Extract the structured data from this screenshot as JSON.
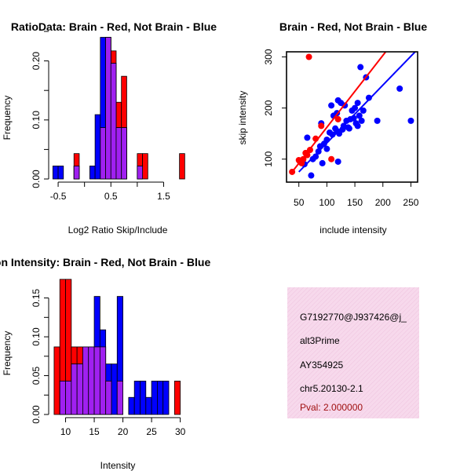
{
  "colors": {
    "red": "#ff0000",
    "blue": "#0000ff",
    "purple": "#a020f0",
    "black": "#000000",
    "panel_bg": "#f7d9ec",
    "pval": "#a01010"
  },
  "chart_data": [
    {
      "type": "bar",
      "title": "RatioData: Brain - Red, Not Brain - Blue",
      "xlabel": "Log2 Ratio Skip/Include",
      "ylabel": "Frequency",
      "xlim": [
        -0.62,
        1.88
      ],
      "ylim": [
        0,
        0.25
      ],
      "xticks": [
        -0.5,
        0.5,
        1.5
      ],
      "xtick_labels": [
        "-0.5",
        "0.5",
        "1.5"
      ],
      "yticks": [
        0.0,
        0.1,
        0.2
      ],
      "ytick_labels": [
        "0.00",
        "0.10",
        "0.20"
      ],
      "bin_width": 0.1,
      "series": [
        {
          "name": "Brain",
          "color": "red",
          "bins": [
            [
              -0.2,
              0.043
            ],
            [
              0.3,
              0.087
            ],
            [
              0.4,
              0.24
            ],
            [
              0.5,
              0.217
            ],
            [
              0.6,
              0.13
            ],
            [
              0.7,
              0.174
            ],
            [
              1.0,
              0.043
            ],
            [
              1.1,
              0.043
            ],
            [
              1.8,
              0.043
            ]
          ]
        },
        {
          "name": "Not Brain",
          "color": "blue",
          "bins": [
            [
              -0.6,
              0.022
            ],
            [
              -0.5,
              0.022
            ],
            [
              -0.2,
              0.022
            ],
            [
              0.1,
              0.022
            ],
            [
              0.2,
              0.109
            ],
            [
              0.3,
              0.24
            ],
            [
              0.4,
              0.24
            ],
            [
              0.5,
              0.196
            ],
            [
              0.6,
              0.087
            ],
            [
              0.7,
              0.087
            ],
            [
              1.0,
              0.022
            ]
          ]
        }
      ]
    },
    {
      "type": "scatter",
      "title": "Brain - Red, Not Brain - Blue",
      "xlabel": "include intensity",
      "ylabel": "skip intensity",
      "xlim": [
        28,
        262
      ],
      "ylim": [
        55,
        310
      ],
      "xticks": [
        50,
        100,
        150,
        200,
        250
      ],
      "xtick_labels": [
        "50",
        "100",
        "150",
        "200",
        "250"
      ],
      "yticks": [
        100,
        200,
        300
      ],
      "ytick_labels": [
        "100",
        "200",
        "300"
      ],
      "series": [
        {
          "name": "Brain",
          "color": "red",
          "x": [
            38,
            50,
            52,
            55,
            58,
            62,
            65,
            70,
            80,
            90,
            108,
            120,
            68
          ],
          "y": [
            75,
            98,
            95,
            92,
            100,
            112,
            108,
            118,
            140,
            165,
            100,
            178,
            300
          ],
          "fit_x": [
            38,
            205
          ],
          "fit_y": [
            75,
            310
          ]
        },
        {
          "name": "Not Brain",
          "color": "blue",
          "x": [
            60,
            65,
            72,
            75,
            80,
            85,
            88,
            90,
            95,
            100,
            105,
            108,
            110,
            112,
            115,
            118,
            120,
            122,
            125,
            128,
            130,
            132,
            135,
            138,
            140,
            142,
            145,
            148,
            150,
            152,
            155,
            158,
            160,
            162,
            165,
            170,
            175,
            190,
            230,
            250,
            92,
            100,
            118,
            155,
            120
          ],
          "y": [
            90,
            142,
            68,
            100,
            105,
            115,
            125,
            170,
            130,
            138,
            152,
            205,
            148,
            185,
            160,
            155,
            215,
            150,
            210,
            158,
            165,
            205,
            175,
            162,
            160,
            178,
            195,
            180,
            200,
            170,
            210,
            185,
            280,
            175,
            195,
            260,
            220,
            175,
            238,
            175,
            92,
            120,
            190,
            165,
            95
          ],
          "fit_x": [
            50,
            262
          ],
          "fit_y": [
            75,
            315
          ]
        }
      ]
    },
    {
      "type": "bar",
      "title": "Exon Intensity: Brain - Red, Not Brain - Blue",
      "xlabel": "Intensity",
      "ylabel": "Frequency",
      "xlim": [
        7.6,
        30.6
      ],
      "ylim": [
        0,
        0.19
      ],
      "xticks": [
        10,
        15,
        20,
        25,
        30
      ],
      "xtick_labels": [
        "10",
        "15",
        "20",
        "25",
        "30"
      ],
      "yticks": [
        0.0,
        0.05,
        0.1,
        0.15
      ],
      "ytick_labels": [
        "0.00",
        "0.05",
        "0.10",
        "0.15"
      ],
      "bin_width": 1,
      "series": [
        {
          "name": "Brain",
          "color": "red",
          "bins": [
            [
              8,
              0.087
            ],
            [
              9,
              0.174
            ],
            [
              10,
              0.174
            ],
            [
              11,
              0.087
            ],
            [
              12,
              0.087
            ],
            [
              13,
              0.087
            ],
            [
              14,
              0.087
            ],
            [
              15,
              0.087
            ],
            [
              16,
              0.087
            ],
            [
              17,
              0.043
            ],
            [
              19,
              0.043
            ],
            [
              29,
              0.043
            ]
          ]
        },
        {
          "name": "Not Brain",
          "color": "blue",
          "bins": [
            [
              9,
              0.043
            ],
            [
              10,
              0.043
            ],
            [
              11,
              0.065
            ],
            [
              12,
              0.065
            ],
            [
              13,
              0.087
            ],
            [
              14,
              0.087
            ],
            [
              15,
              0.152
            ],
            [
              16,
              0.109
            ],
            [
              17,
              0.065
            ],
            [
              18,
              0.065
            ],
            [
              19,
              0.152
            ],
            [
              21,
              0.022
            ],
            [
              22,
              0.043
            ],
            [
              23,
              0.043
            ],
            [
              24,
              0.022
            ],
            [
              25,
              0.043
            ],
            [
              26,
              0.043
            ],
            [
              27,
              0.043
            ]
          ]
        }
      ]
    }
  ],
  "info_panel": {
    "lines": [
      "G7192770@J937426@j_",
      "alt3Prime",
      "AY354925",
      "chr5.20130-2.1"
    ],
    "pval": "Pval: 2.000000"
  }
}
